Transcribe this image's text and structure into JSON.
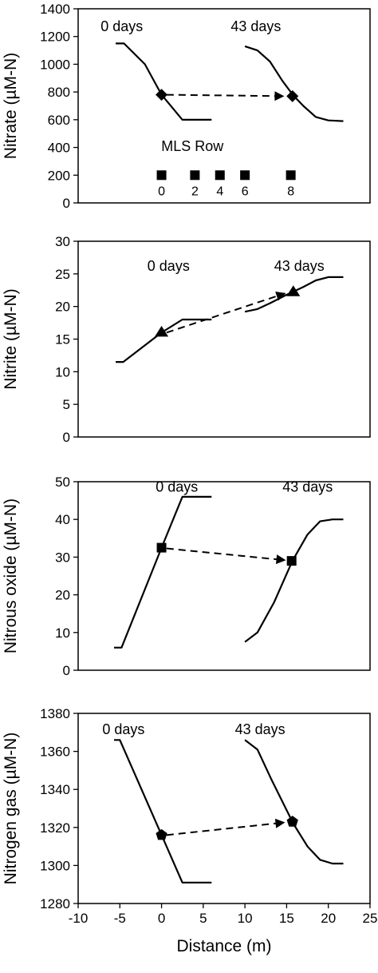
{
  "chart_data": [
    {
      "type": "line",
      "ylabel": "Nitrate (µM-N)",
      "ylim": [
        0,
        1400
      ],
      "yticks": [
        0,
        200,
        400,
        600,
        800,
        1000,
        1200,
        1400
      ],
      "xlim": [
        -10,
        25
      ],
      "series": [
        {
          "label": "0 days",
          "points": [
            [
              -5.5,
              1150
            ],
            [
              -4.5,
              1150
            ],
            [
              -2,
              1000
            ],
            [
              0,
              780
            ],
            [
              2.5,
              600
            ],
            [
              6,
              600
            ]
          ]
        },
        {
          "label": "43 days",
          "points": [
            [
              10,
              1130
            ],
            [
              11.5,
              1100
            ],
            [
              13,
              1020
            ],
            [
              14.5,
              880
            ],
            [
              15.8,
              775
            ],
            [
              17,
              700
            ],
            [
              18.5,
              620
            ],
            [
              20,
              595
            ],
            [
              21.8,
              590
            ]
          ]
        }
      ],
      "markers": [
        {
          "shape": "diamond",
          "x": 0,
          "y": 780
        },
        {
          "shape": "diamond",
          "x": 15.7,
          "y": 770
        }
      ],
      "arrow": {
        "from": [
          0.6,
          780
        ],
        "to": [
          14.6,
          770
        ]
      },
      "annotations": [
        {
          "text": "0 days",
          "x": -7.3,
          "y": 1240
        },
        {
          "text": "43 days",
          "x": 8.3,
          "y": 1240
        }
      ],
      "mls_row": {
        "label": "MLS Row",
        "label_pos": [
          3.7,
          375
        ],
        "y": 200,
        "x": [
          0,
          4,
          7,
          10,
          15.5
        ],
        "labels": [
          "0",
          "2",
          "4",
          "6",
          "8"
        ]
      }
    },
    {
      "type": "line",
      "ylabel": "Nitrite (µM-N)",
      "ylim": [
        0,
        30
      ],
      "yticks": [
        0,
        5,
        10,
        15,
        20,
        25,
        30
      ],
      "xlim": [
        -10,
        25
      ],
      "series": [
        {
          "label": "0 days",
          "points": [
            [
              -5.5,
              11.5
            ],
            [
              -4.6,
              11.5
            ],
            [
              0,
              16
            ],
            [
              2.5,
              18
            ],
            [
              6,
              18
            ]
          ]
        },
        {
          "label": "43 days",
          "points": [
            [
              10,
              19.2
            ],
            [
              11.5,
              19.6
            ],
            [
              13,
              20.5
            ],
            [
              15,
              21.8
            ],
            [
              17,
              23
            ],
            [
              18.5,
              24
            ],
            [
              20,
              24.5
            ],
            [
              21.8,
              24.5
            ]
          ]
        }
      ],
      "markers": [
        {
          "shape": "triangle",
          "x": 0,
          "y": 16
        },
        {
          "shape": "triangle",
          "x": 15.8,
          "y": 22.2
        }
      ],
      "arrow": {
        "from": [
          0.6,
          16
        ],
        "to": [
          14.8,
          22
        ]
      },
      "annotations": [
        {
          "text": "0 days",
          "x": -1.7,
          "y": 25.5
        },
        {
          "text": "43 days",
          "x": 13.5,
          "y": 25.5
        }
      ]
    },
    {
      "type": "line",
      "ylabel": "Nitrous oxide (µM-N)",
      "ylim": [
        0,
        50
      ],
      "yticks": [
        0,
        10,
        20,
        30,
        40,
        50
      ],
      "xlim": [
        -10,
        25
      ],
      "series": [
        {
          "label": "0 days",
          "points": [
            [
              -5.7,
              6
            ],
            [
              -4.8,
              6
            ],
            [
              0,
              32.5
            ],
            [
              2.5,
              46
            ],
            [
              6,
              46
            ]
          ]
        },
        {
          "label": "43 days",
          "points": [
            [
              10,
              7.5
            ],
            [
              11.5,
              10
            ],
            [
              13.5,
              18
            ],
            [
              15.7,
              29
            ],
            [
              17.5,
              36
            ],
            [
              19,
              39.5
            ],
            [
              20.5,
              40
            ],
            [
              21.8,
              40
            ]
          ]
        }
      ],
      "markers": [
        {
          "shape": "square",
          "x": 0,
          "y": 32.5
        },
        {
          "shape": "square",
          "x": 15.6,
          "y": 29
        }
      ],
      "arrow": {
        "from": [
          0.6,
          32.3
        ],
        "to": [
          14.8,
          29.2
        ]
      },
      "annotations": [
        {
          "text": "0 days",
          "x": -0.7,
          "y": 47.4
        },
        {
          "text": "43 days",
          "x": 14.5,
          "y": 47.4
        }
      ]
    },
    {
      "type": "line",
      "ylabel": "Nitrogen gas (µM-N)",
      "ylim": [
        1280,
        1380
      ],
      "yticks": [
        1280,
        1300,
        1320,
        1340,
        1360,
        1380
      ],
      "xlim": [
        -10,
        25
      ],
      "xticks": [
        -10,
        -5,
        0,
        5,
        10,
        15,
        20,
        25
      ],
      "xlabel": "Distance (m)",
      "series": [
        {
          "label": "0 days",
          "points": [
            [
              -5.7,
              1366
            ],
            [
              -5,
              1366
            ],
            [
              0,
              1316
            ],
            [
              2.5,
              1291
            ],
            [
              6,
              1291
            ]
          ]
        },
        {
          "label": "43 days",
          "points": [
            [
              10,
              1366
            ],
            [
              11.5,
              1361
            ],
            [
              13.2,
              1345
            ],
            [
              15.8,
              1322
            ],
            [
              17.5,
              1310
            ],
            [
              19,
              1303
            ],
            [
              20.5,
              1301
            ],
            [
              21.8,
              1301
            ]
          ]
        }
      ],
      "markers": [
        {
          "shape": "pentagon",
          "x": 0,
          "y": 1316
        },
        {
          "shape": "pentagon",
          "x": 15.7,
          "y": 1323
        }
      ],
      "arrow": {
        "from": [
          0.6,
          1316
        ],
        "to": [
          14.7,
          1322.6
        ]
      },
      "annotations": [
        {
          "text": "0 days",
          "x": -7.1,
          "y": 1369
        },
        {
          "text": "43 days",
          "x": 8.8,
          "y": 1369
        }
      ]
    }
  ]
}
